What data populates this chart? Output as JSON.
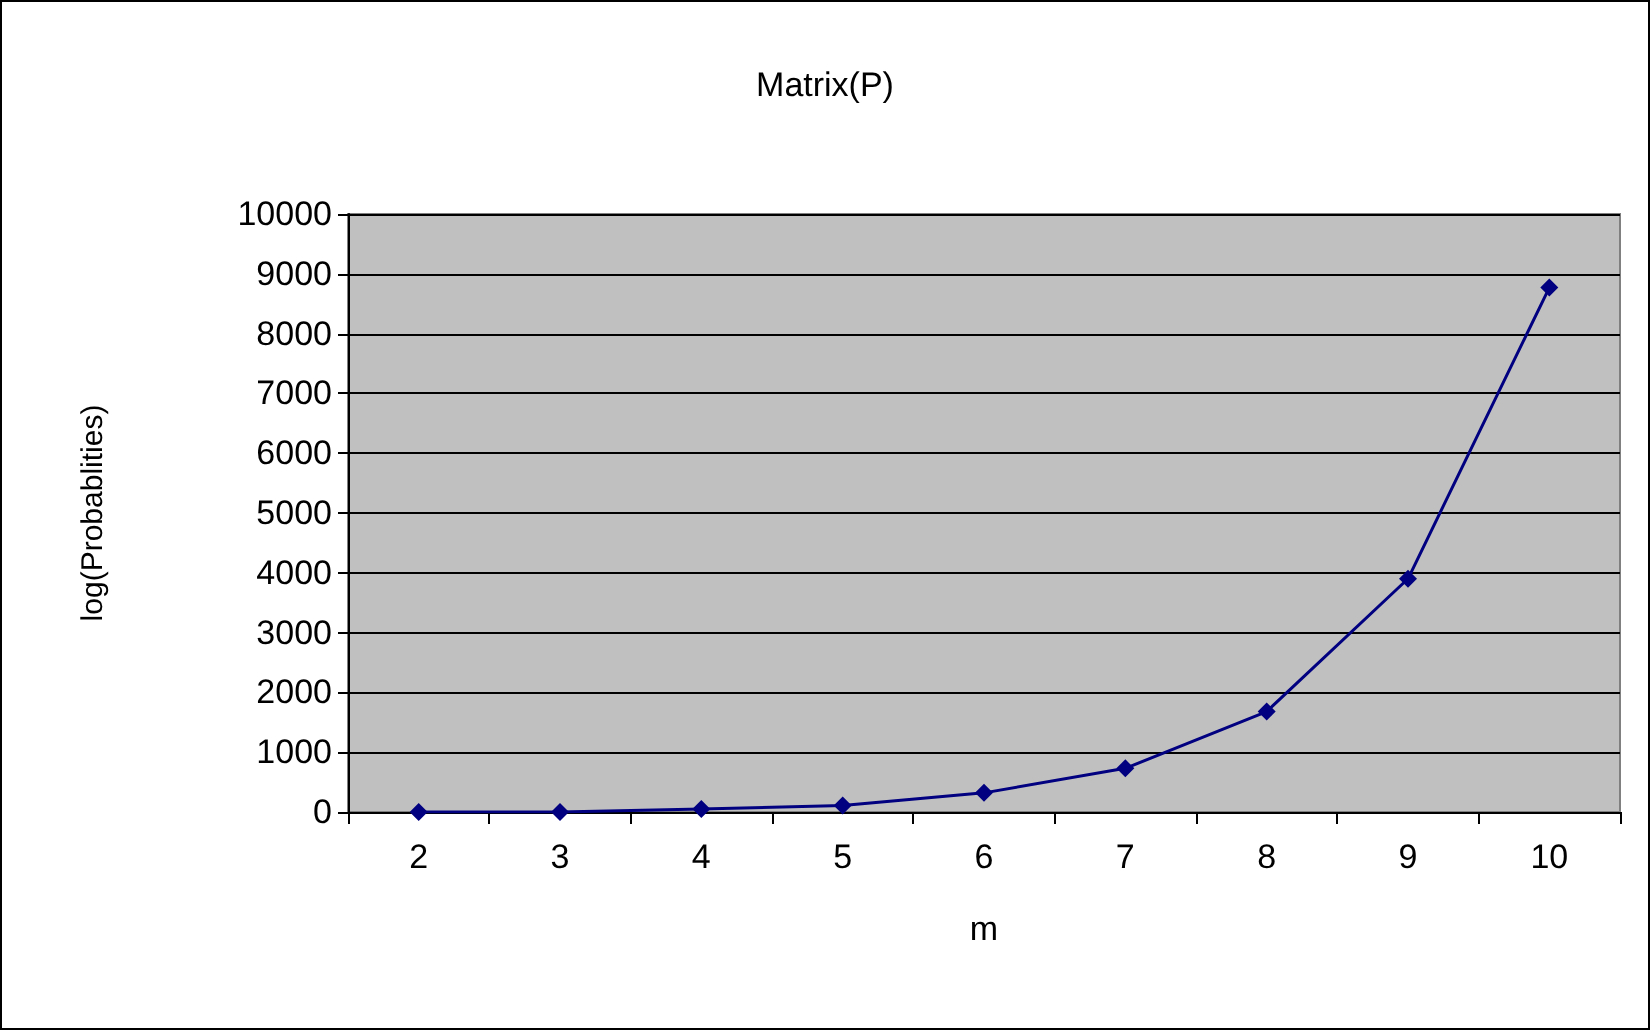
{
  "chart_data": {
    "type": "line",
    "title": "Matrix(P)",
    "xlabel": "m",
    "ylabel": "log(Probablities)",
    "categories": [
      "2",
      "3",
      "4",
      "5",
      "6",
      "7",
      "8",
      "9",
      "10"
    ],
    "series": [
      {
        "color": "#000080",
        "values": [
          0,
          0,
          50,
          110,
          320,
          730,
          1680,
          3900,
          8770
        ]
      }
    ],
    "ylim": [
      0,
      10000
    ],
    "yticks": [
      0,
      1000,
      2000,
      3000,
      4000,
      5000,
      6000,
      7000,
      8000,
      9000,
      10000
    ],
    "grid": "y",
    "marker": "diamond",
    "line_style": "solid"
  }
}
